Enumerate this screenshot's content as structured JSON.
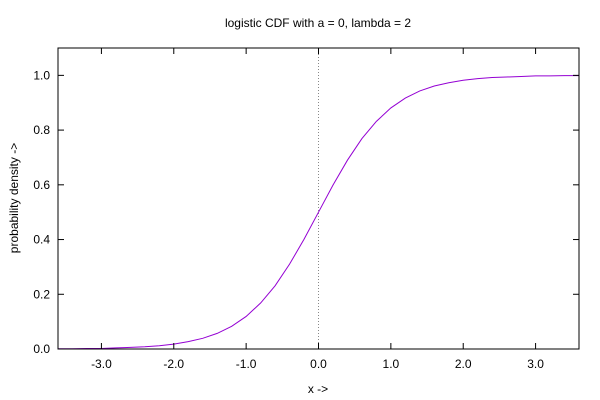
{
  "chart_data": {
    "type": "line",
    "title": "logistic CDF with a = 0, lambda = 2",
    "xlabel": "x ->",
    "ylabel": "probability density ->",
    "xlim": [
      -3.6,
      3.6
    ],
    "ylim": [
      0,
      1.1
    ],
    "grid": false,
    "legend": "none",
    "xticks": [
      -3.0,
      -2.0,
      -1.0,
      0.0,
      1.0,
      2.0,
      3.0
    ],
    "xtick_labels": [
      "-3.0",
      "-2.0",
      "-1.0",
      "0.0",
      "1.0",
      "2.0",
      "3.0"
    ],
    "yticks": [
      0.0,
      0.2,
      0.4,
      0.6,
      0.8,
      1.0
    ],
    "ytick_labels": [
      "0.0",
      "0.2",
      "0.4",
      "0.6",
      "0.8",
      "1.0"
    ],
    "reference_lines": [
      {
        "axis": "x",
        "value": 0.0,
        "style": "dotted",
        "color": "#888888"
      }
    ],
    "series": [
      {
        "color": "#9400d3",
        "x": [
          -3.6,
          -3.4,
          -3.2,
          -3.0,
          -2.8,
          -2.6,
          -2.4,
          -2.2,
          -2.0,
          -1.8,
          -1.6,
          -1.4,
          -1.2,
          -1.0,
          -0.8,
          -0.6,
          -0.4,
          -0.2,
          0.0,
          0.2,
          0.4,
          0.6,
          0.8,
          1.0,
          1.2,
          1.4,
          1.6,
          1.8,
          2.0,
          2.2,
          2.4,
          2.6,
          2.8,
          3.0,
          3.2,
          3.4,
          3.6
        ],
        "y": [
          0.001,
          0.001,
          0.002,
          0.002,
          0.004,
          0.006,
          0.008,
          0.012,
          0.018,
          0.027,
          0.039,
          0.057,
          0.083,
          0.119,
          0.168,
          0.231,
          0.31,
          0.401,
          0.5,
          0.599,
          0.69,
          0.769,
          0.832,
          0.881,
          0.917,
          0.943,
          0.961,
          0.973,
          0.982,
          0.988,
          0.992,
          0.994,
          0.996,
          0.998,
          0.998,
          0.999,
          0.999
        ]
      }
    ]
  }
}
